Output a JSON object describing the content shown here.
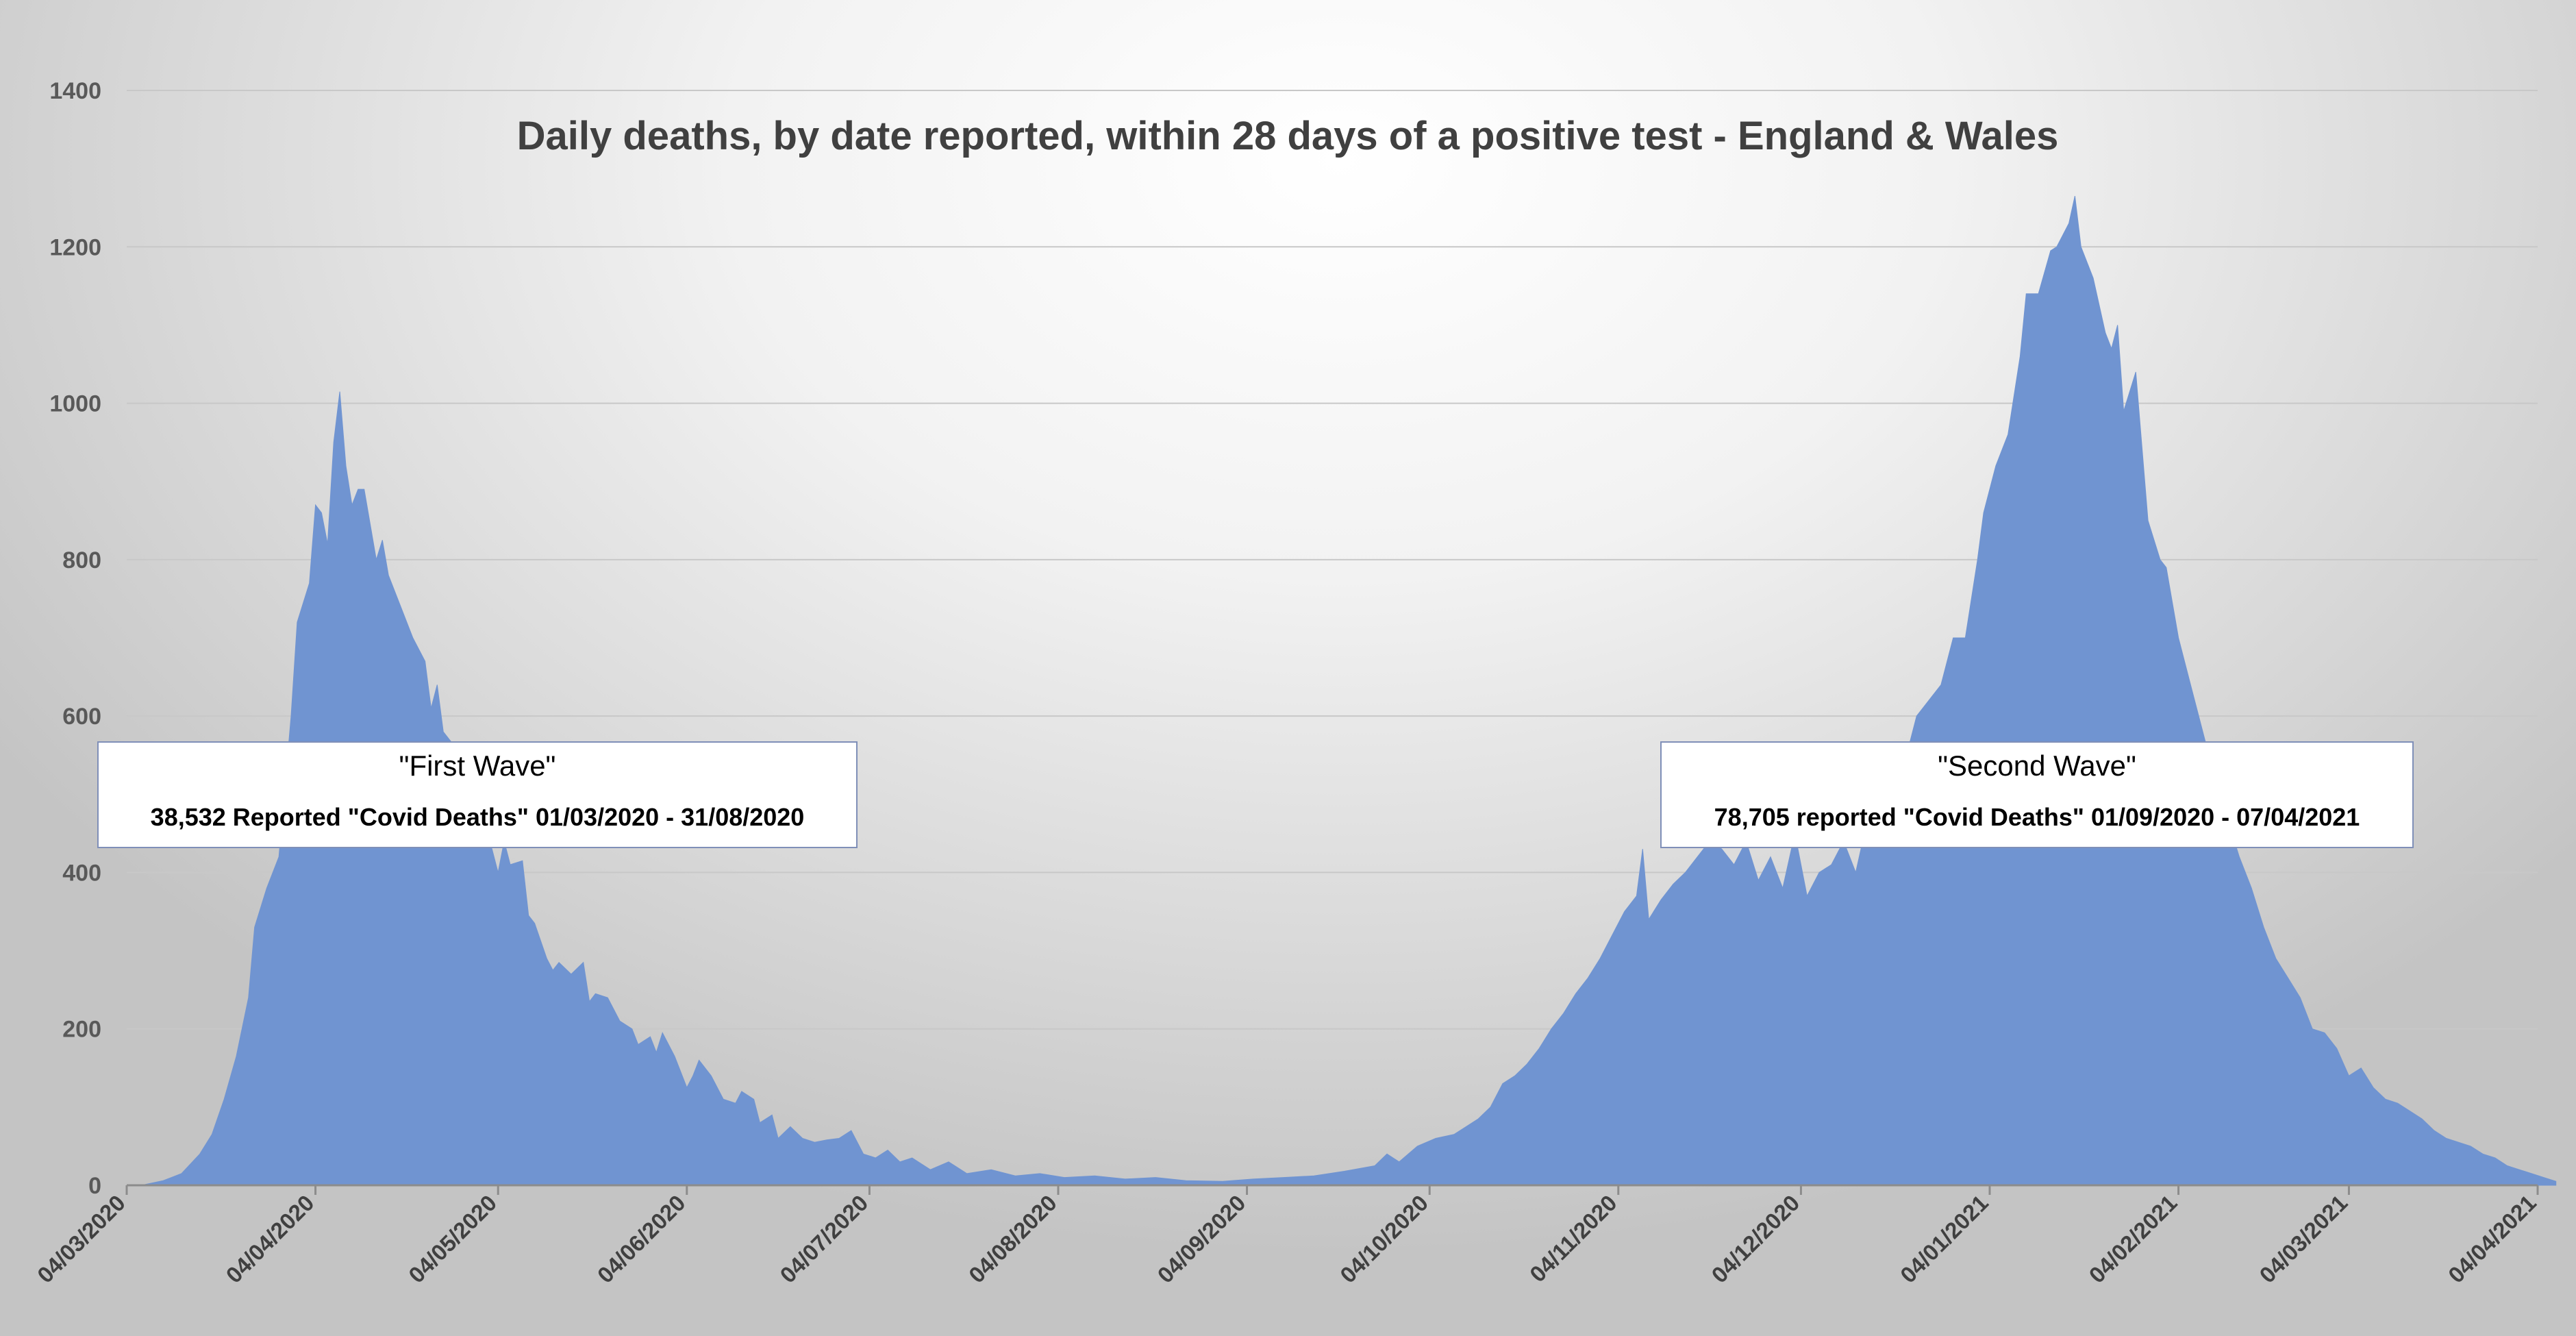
{
  "chart_data": {
    "type": "area",
    "title": "Daily deaths, by date reported, within 28 days of a positive test - England & Wales",
    "xlabel": "",
    "ylabel": "",
    "ylim": [
      0,
      1400
    ],
    "y_ticks": [
      0,
      200,
      400,
      600,
      800,
      1000,
      1200,
      1400
    ],
    "grid": true,
    "x_ticks": [
      "04/03/2020",
      "04/04/2020",
      "04/05/2020",
      "04/06/2020",
      "04/07/2020",
      "04/08/2020",
      "04/09/2020",
      "04/10/2020",
      "04/11/2020",
      "04/12/2020",
      "04/01/2021",
      "04/02/2021",
      "04/03/2021",
      "04/04/2021"
    ],
    "series": [
      {
        "color": "#7094d1",
        "points": [
          [
            "2020-03-04",
            0
          ],
          [
            "2020-03-07",
            1
          ],
          [
            "2020-03-10",
            6
          ],
          [
            "2020-03-13",
            15
          ],
          [
            "2020-03-16",
            40
          ],
          [
            "2020-03-18",
            65
          ],
          [
            "2020-03-20",
            110
          ],
          [
            "2020-03-22",
            165
          ],
          [
            "2020-03-24",
            240
          ],
          [
            "2020-03-25",
            330
          ],
          [
            "2020-03-27",
            380
          ],
          [
            "2020-03-29",
            420
          ],
          [
            "2020-03-31",
            600
          ],
          [
            "2020-04-01",
            720
          ],
          [
            "2020-04-03",
            770
          ],
          [
            "2020-04-04",
            870
          ],
          [
            "2020-04-05",
            860
          ],
          [
            "2020-04-06",
            820
          ],
          [
            "2020-04-07",
            950
          ],
          [
            "2020-04-08",
            1015
          ],
          [
            "2020-04-09",
            920
          ],
          [
            "2020-04-10",
            870
          ],
          [
            "2020-04-11",
            890
          ],
          [
            "2020-04-12",
            890
          ],
          [
            "2020-04-14",
            800
          ],
          [
            "2020-04-15",
            825
          ],
          [
            "2020-04-16",
            780
          ],
          [
            "2020-04-18",
            740
          ],
          [
            "2020-04-20",
            700
          ],
          [
            "2020-04-22",
            670
          ],
          [
            "2020-04-23",
            610
          ],
          [
            "2020-04-24",
            640
          ],
          [
            "2020-04-25",
            580
          ],
          [
            "2020-04-27",
            560
          ],
          [
            "2020-04-29",
            510
          ],
          [
            "2020-05-01",
            470
          ],
          [
            "2020-05-03",
            430
          ],
          [
            "2020-05-04",
            400
          ],
          [
            "2020-05-05",
            440
          ],
          [
            "2020-05-06",
            410
          ],
          [
            "2020-05-08",
            415
          ],
          [
            "2020-05-09",
            345
          ],
          [
            "2020-05-10",
            335
          ],
          [
            "2020-05-12",
            290
          ],
          [
            "2020-05-13",
            275
          ],
          [
            "2020-05-14",
            285
          ],
          [
            "2020-05-16",
            270
          ],
          [
            "2020-05-18",
            285
          ],
          [
            "2020-05-19",
            235
          ],
          [
            "2020-05-20",
            245
          ],
          [
            "2020-05-22",
            240
          ],
          [
            "2020-05-24",
            210
          ],
          [
            "2020-05-26",
            200
          ],
          [
            "2020-05-27",
            180
          ],
          [
            "2020-05-29",
            190
          ],
          [
            "2020-05-30",
            170
          ],
          [
            "2020-05-31",
            195
          ],
          [
            "2020-06-02",
            165
          ],
          [
            "2020-06-04",
            125
          ],
          [
            "2020-06-05",
            140
          ],
          [
            "2020-06-06",
            160
          ],
          [
            "2020-06-08",
            140
          ],
          [
            "2020-06-10",
            110
          ],
          [
            "2020-06-12",
            105
          ],
          [
            "2020-06-13",
            120
          ],
          [
            "2020-06-15",
            110
          ],
          [
            "2020-06-16",
            80
          ],
          [
            "2020-06-18",
            90
          ],
          [
            "2020-06-19",
            60
          ],
          [
            "2020-06-21",
            75
          ],
          [
            "2020-06-23",
            60
          ],
          [
            "2020-06-25",
            55
          ],
          [
            "2020-06-27",
            58
          ],
          [
            "2020-06-29",
            60
          ],
          [
            "2020-07-01",
            70
          ],
          [
            "2020-07-03",
            40
          ],
          [
            "2020-07-05",
            35
          ],
          [
            "2020-07-07",
            45
          ],
          [
            "2020-07-09",
            30
          ],
          [
            "2020-07-11",
            35
          ],
          [
            "2020-07-14",
            20
          ],
          [
            "2020-07-17",
            30
          ],
          [
            "2020-07-20",
            15
          ],
          [
            "2020-07-24",
            20
          ],
          [
            "2020-07-28",
            12
          ],
          [
            "2020-08-01",
            15
          ],
          [
            "2020-08-05",
            10
          ],
          [
            "2020-08-10",
            12
          ],
          [
            "2020-08-15",
            8
          ],
          [
            "2020-08-20",
            10
          ],
          [
            "2020-08-25",
            6
          ],
          [
            "2020-08-31",
            5
          ],
          [
            "2020-09-05",
            8
          ],
          [
            "2020-09-10",
            10
          ],
          [
            "2020-09-15",
            12
          ],
          [
            "2020-09-20",
            18
          ],
          [
            "2020-09-25",
            25
          ],
          [
            "2020-09-27",
            40
          ],
          [
            "2020-09-29",
            30
          ],
          [
            "2020-10-02",
            50
          ],
          [
            "2020-10-05",
            60
          ],
          [
            "2020-10-08",
            65
          ],
          [
            "2020-10-10",
            75
          ],
          [
            "2020-10-12",
            85
          ],
          [
            "2020-10-14",
            100
          ],
          [
            "2020-10-16",
            130
          ],
          [
            "2020-10-18",
            140
          ],
          [
            "2020-10-20",
            155
          ],
          [
            "2020-10-22",
            175
          ],
          [
            "2020-10-24",
            200
          ],
          [
            "2020-10-26",
            220
          ],
          [
            "2020-10-28",
            245
          ],
          [
            "2020-10-30",
            265
          ],
          [
            "2020-11-01",
            290
          ],
          [
            "2020-11-03",
            320
          ],
          [
            "2020-11-05",
            350
          ],
          [
            "2020-11-07",
            370
          ],
          [
            "2020-11-08",
            430
          ],
          [
            "2020-11-09",
            340
          ],
          [
            "2020-11-11",
            365
          ],
          [
            "2020-11-13",
            385
          ],
          [
            "2020-11-15",
            400
          ],
          [
            "2020-11-17",
            420
          ],
          [
            "2020-11-19",
            440
          ],
          [
            "2020-11-21",
            430
          ],
          [
            "2020-11-23",
            410
          ],
          [
            "2020-11-25",
            440
          ],
          [
            "2020-11-27",
            390
          ],
          [
            "2020-11-29",
            420
          ],
          [
            "2020-12-01",
            380
          ],
          [
            "2020-12-03",
            450
          ],
          [
            "2020-12-05",
            370
          ],
          [
            "2020-12-07",
            400
          ],
          [
            "2020-12-09",
            410
          ],
          [
            "2020-12-11",
            440
          ],
          [
            "2020-12-13",
            400
          ],
          [
            "2020-12-15",
            470
          ],
          [
            "2020-12-17",
            480
          ],
          [
            "2020-12-19",
            510
          ],
          [
            "2020-12-21",
            540
          ],
          [
            "2020-12-23",
            600
          ],
          [
            "2020-12-25",
            620
          ],
          [
            "2020-12-27",
            640
          ],
          [
            "2020-12-29",
            700
          ],
          [
            "2020-12-31",
            700
          ],
          [
            "2021-01-02",
            800
          ],
          [
            "2021-01-03",
            860
          ],
          [
            "2021-01-05",
            920
          ],
          [
            "2021-01-07",
            960
          ],
          [
            "2021-01-09",
            1060
          ],
          [
            "2021-01-10",
            1140
          ],
          [
            "2021-01-12",
            1140
          ],
          [
            "2021-01-14",
            1195
          ],
          [
            "2021-01-15",
            1200
          ],
          [
            "2021-01-17",
            1230
          ],
          [
            "2021-01-18",
            1265
          ],
          [
            "2021-01-19",
            1200
          ],
          [
            "2021-01-21",
            1160
          ],
          [
            "2021-01-23",
            1090
          ],
          [
            "2021-01-24",
            1070
          ],
          [
            "2021-01-25",
            1100
          ],
          [
            "2021-01-26",
            990
          ],
          [
            "2021-01-28",
            1040
          ],
          [
            "2021-01-30",
            850
          ],
          [
            "2021-02-01",
            800
          ],
          [
            "2021-02-02",
            790
          ],
          [
            "2021-02-04",
            700
          ],
          [
            "2021-02-06",
            640
          ],
          [
            "2021-02-08",
            580
          ],
          [
            "2021-02-10",
            520
          ],
          [
            "2021-02-12",
            470
          ],
          [
            "2021-02-14",
            420
          ],
          [
            "2021-02-16",
            380
          ],
          [
            "2021-02-18",
            330
          ],
          [
            "2021-02-20",
            290
          ],
          [
            "2021-02-22",
            265
          ],
          [
            "2021-02-24",
            240
          ],
          [
            "2021-02-26",
            200
          ],
          [
            "2021-02-28",
            195
          ],
          [
            "2021-03-02",
            175
          ],
          [
            "2021-03-04",
            140
          ],
          [
            "2021-03-06",
            150
          ],
          [
            "2021-03-08",
            125
          ],
          [
            "2021-03-10",
            110
          ],
          [
            "2021-03-12",
            105
          ],
          [
            "2021-03-14",
            95
          ],
          [
            "2021-03-16",
            85
          ],
          [
            "2021-03-18",
            70
          ],
          [
            "2021-03-20",
            60
          ],
          [
            "2021-03-22",
            55
          ],
          [
            "2021-03-24",
            50
          ],
          [
            "2021-03-26",
            40
          ],
          [
            "2021-03-28",
            35
          ],
          [
            "2021-03-30",
            25
          ],
          [
            "2021-04-01",
            20
          ],
          [
            "2021-04-03",
            15
          ],
          [
            "2021-04-05",
            10
          ],
          [
            "2021-04-07",
            5
          ]
        ]
      }
    ],
    "annotations": [
      {
        "title": "\"First Wave\"",
        "text": "38,532 Reported \"Covid Deaths\" 01/03/2020 - 31/08/2020"
      },
      {
        "title": "\"Second Wave\"",
        "text": "78,705 reported \"Covid Deaths\" 01/09/2020 - 07/04/2021"
      }
    ]
  }
}
